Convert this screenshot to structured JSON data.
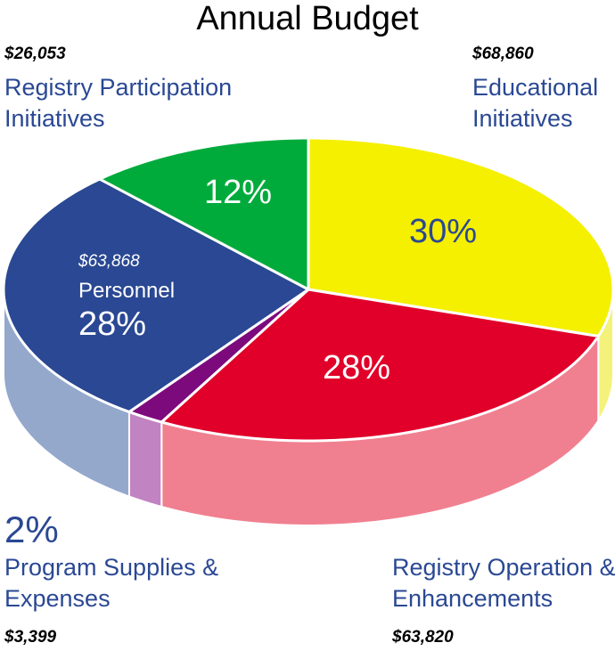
{
  "chart_data": {
    "type": "pie",
    "title": "Annual Budget",
    "categories": [
      "Educational Initiatives",
      "Registry Operation & Enhancements",
      "Program Supplies & Expenses",
      "Personnel",
      "Registry Participation Initiatives"
    ],
    "values": [
      30,
      28,
      2,
      28,
      12
    ],
    "value_labels": [
      "30%",
      "28%",
      "2%",
      "28%",
      "12%"
    ],
    "amount_labels": [
      "$68,860",
      "$63,820",
      "$3,399",
      "$63,868",
      "$26,053"
    ],
    "colors": [
      "#f5ef00",
      "#e0002a",
      "#7d0a7d",
      "#2a4893",
      "#00ab3c"
    ],
    "side_colors": [
      "#f4f27a",
      "#f08090",
      "#c283c2",
      "#94a8cc",
      "#6fcf86"
    ]
  }
}
